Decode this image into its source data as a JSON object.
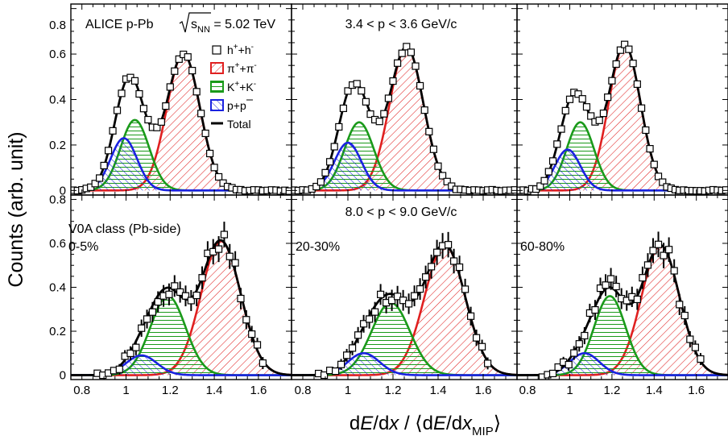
{
  "figure": {
    "ylabel": "Counts (arb. unit)",
    "xlabel_parts": [
      "d",
      "E",
      "/d",
      "x",
      " / ⟨d",
      "E",
      "/d",
      "x",
      "MIP",
      "⟩"
    ],
    "colors": {
      "pion": "#e02020",
      "kaon": "#1a9a1a",
      "proton": "#1a22e0",
      "total": "#000000",
      "data": "#000000"
    }
  },
  "text": {
    "experiment": "ALICE p-Pb",
    "sqrt_s": "s",
    "sqrt_sub": "NN",
    "energy": " = 5.02 TeV",
    "mom_top": "3.4 < p < 3.6 GeV/c",
    "mom_bottom": "8.0 < p < 9.0 GeV/c",
    "v0a": "V0A class (Pb-side)",
    "centrality": [
      "0-5%",
      "20-30%",
      "60-80%"
    ]
  },
  "legend": [
    {
      "key": "data",
      "label": "h",
      "sup1": "+",
      "mid": "+h",
      "sup2": "-"
    },
    {
      "key": "pion",
      "label": "π",
      "sup1": "+",
      "mid": "+π",
      "sup2": "-"
    },
    {
      "key": "kaon",
      "label": "K",
      "sup1": "+",
      "mid": "+K",
      "sup2": "-"
    },
    {
      "key": "proton",
      "label": "p+p",
      "sup1": "",
      "mid": "",
      "sup2": ""
    },
    {
      "key": "total",
      "label": "Total",
      "sup1": "",
      "mid": "",
      "sup2": ""
    }
  ],
  "chart_data": [
    {
      "type": "area",
      "panel": "top-left",
      "momentum": "3.4 < p < 3.6 GeV/c",
      "centrality": "",
      "xlim": [
        0.75,
        1.75
      ],
      "ylim": [
        -0.02,
        0.82
      ],
      "xticks": [
        0.8,
        1,
        1.2,
        1.4,
        1.6
      ],
      "yticks": [
        0,
        0.2,
        0.4,
        0.6,
        0.8
      ],
      "series": [
        {
          "name": "π++π-",
          "type": "gaussian",
          "mean": 1.26,
          "sigma": 0.075,
          "amplitude": 0.6
        },
        {
          "name": "K++K-",
          "type": "gaussian",
          "mean": 1.04,
          "sigma": 0.065,
          "amplitude": 0.31
        },
        {
          "name": "p+p",
          "type": "gaussian",
          "mean": 0.99,
          "sigma": 0.06,
          "amplitude": 0.23
        },
        {
          "name": "Total",
          "type": "sum"
        },
        {
          "name": "h++h-",
          "type": "points",
          "step": 0.02,
          "x_range": [
            0.76,
            1.74
          ]
        }
      ]
    },
    {
      "type": "area",
      "panel": "top-middle",
      "momentum": "3.4 < p < 3.6 GeV/c",
      "centrality": "",
      "xlim": [
        0.75,
        1.75
      ],
      "ylim": [
        -0.02,
        0.82
      ],
      "xticks": [
        0.8,
        1,
        1.2,
        1.4,
        1.6
      ],
      "yticks": [
        0,
        0.2,
        0.4,
        0.6,
        0.8
      ],
      "series": [
        {
          "name": "π++π-",
          "type": "gaussian",
          "mean": 1.26,
          "sigma": 0.075,
          "amplitude": 0.63
        },
        {
          "name": "K++K-",
          "type": "gaussian",
          "mean": 1.05,
          "sigma": 0.065,
          "amplitude": 0.3
        },
        {
          "name": "p+p",
          "type": "gaussian",
          "mean": 1.0,
          "sigma": 0.06,
          "amplitude": 0.21
        },
        {
          "name": "Total",
          "type": "sum"
        },
        {
          "name": "h++h-",
          "type": "points",
          "step": 0.02,
          "x_range": [
            0.76,
            1.74
          ]
        }
      ]
    },
    {
      "type": "area",
      "panel": "top-right",
      "momentum": "3.4 < p < 3.6 GeV/c",
      "centrality": "",
      "xlim": [
        0.75,
        1.75
      ],
      "ylim": [
        -0.02,
        0.82
      ],
      "xticks": [
        0.8,
        1,
        1.2,
        1.4,
        1.6
      ],
      "yticks": [
        0,
        0.2,
        0.4,
        0.6,
        0.8
      ],
      "series": [
        {
          "name": "π++π-",
          "type": "gaussian",
          "mean": 1.26,
          "sigma": 0.075,
          "amplitude": 0.64
        },
        {
          "name": "K++K-",
          "type": "gaussian",
          "mean": 1.05,
          "sigma": 0.065,
          "amplitude": 0.3
        },
        {
          "name": "p+p",
          "type": "gaussian",
          "mean": 0.99,
          "sigma": 0.06,
          "amplitude": 0.18
        },
        {
          "name": "Total",
          "type": "sum"
        },
        {
          "name": "h++h-",
          "type": "points",
          "step": 0.02,
          "x_range": [
            0.76,
            1.74
          ]
        }
      ]
    },
    {
      "type": "area",
      "panel": "bottom-left",
      "momentum": "8.0 < p < 9.0 GeV/c",
      "centrality": "0-5%",
      "xlim": [
        0.75,
        1.75
      ],
      "ylim": [
        -0.02,
        0.82
      ],
      "xticks": [
        0.8,
        1,
        1.2,
        1.4,
        1.6
      ],
      "yticks": [
        0,
        0.2,
        0.4,
        0.6,
        0.8
      ],
      "series": [
        {
          "name": "π++π-",
          "type": "gaussian",
          "mean": 1.43,
          "sigma": 0.09,
          "amplitude": 0.61
        },
        {
          "name": "K++K-",
          "type": "gaussian",
          "mean": 1.19,
          "sigma": 0.08,
          "amplitude": 0.36
        },
        {
          "name": "p+p",
          "type": "gaussian",
          "mean": 1.07,
          "sigma": 0.07,
          "amplitude": 0.09
        },
        {
          "name": "Total",
          "type": "sum"
        },
        {
          "name": "h++h-",
          "type": "points",
          "step": 0.025,
          "x_range": [
            0.87,
            1.64
          ]
        }
      ]
    },
    {
      "type": "area",
      "panel": "bottom-middle",
      "momentum": "8.0 < p < 9.0 GeV/c",
      "centrality": "20-30%",
      "xlim": [
        0.75,
        1.75
      ],
      "ylim": [
        -0.02,
        0.82
      ],
      "xticks": [
        0.8,
        1,
        1.2,
        1.4,
        1.6
      ],
      "yticks": [
        0,
        0.2,
        0.4,
        0.6,
        0.8
      ],
      "series": [
        {
          "name": "π++π-",
          "type": "gaussian",
          "mean": 1.43,
          "sigma": 0.09,
          "amplitude": 0.59
        },
        {
          "name": "K++K-",
          "type": "gaussian",
          "mean": 1.19,
          "sigma": 0.085,
          "amplitude": 0.33
        },
        {
          "name": "p+p",
          "type": "gaussian",
          "mean": 1.07,
          "sigma": 0.07,
          "amplitude": 0.1
        },
        {
          "name": "Total",
          "type": "sum"
        },
        {
          "name": "h++h-",
          "type": "points",
          "step": 0.025,
          "x_range": [
            0.87,
            1.64
          ]
        }
      ]
    },
    {
      "type": "area",
      "panel": "bottom-right",
      "momentum": "8.0 < p < 9.0 GeV/c",
      "centrality": "60-80%",
      "xlim": [
        0.75,
        1.75
      ],
      "ylim": [
        -0.02,
        0.82
      ],
      "xticks": [
        0.8,
        1,
        1.2,
        1.4,
        1.6
      ],
      "yticks": [
        0,
        0.2,
        0.4,
        0.6,
        0.8
      ],
      "series": [
        {
          "name": "π++π-",
          "type": "gaussian",
          "mean": 1.43,
          "sigma": 0.09,
          "amplitude": 0.59
        },
        {
          "name": "K++K-",
          "type": "gaussian",
          "mean": 1.19,
          "sigma": 0.075,
          "amplitude": 0.36
        },
        {
          "name": "p+p",
          "type": "gaussian",
          "mean": 1.07,
          "sigma": 0.07,
          "amplitude": 0.1
        },
        {
          "name": "Total",
          "type": "sum"
        },
        {
          "name": "h++h-",
          "type": "points",
          "step": 0.025,
          "x_range": [
            0.87,
            1.64
          ]
        }
      ]
    }
  ]
}
